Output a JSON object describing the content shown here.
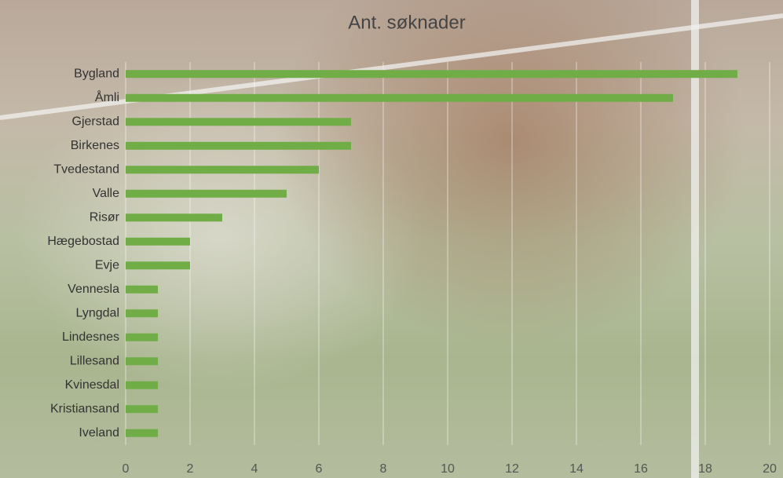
{
  "chart_data": {
    "type": "bar",
    "orientation": "horizontal",
    "title": "Ant. søknader",
    "categories": [
      "Bygland",
      "Åmli",
      "Gjerstad",
      "Birkenes",
      "Tvedestand",
      "Valle",
      "Risør",
      "Hægebostad",
      "Evje",
      "Vennesla",
      "Lyngdal",
      "Lindesnes",
      "Lillesand",
      "Kvinesdal",
      "Kristiansand",
      "Iveland"
    ],
    "values": [
      19,
      17,
      7,
      7,
      6,
      5,
      3,
      2,
      2,
      1,
      1,
      1,
      1,
      1,
      1,
      1
    ],
    "color": "#70ad47",
    "xlim": [
      0,
      20
    ],
    "xticks": [
      0,
      2,
      4,
      6,
      8,
      10,
      12,
      14,
      16,
      18,
      20
    ],
    "grid": true
  }
}
